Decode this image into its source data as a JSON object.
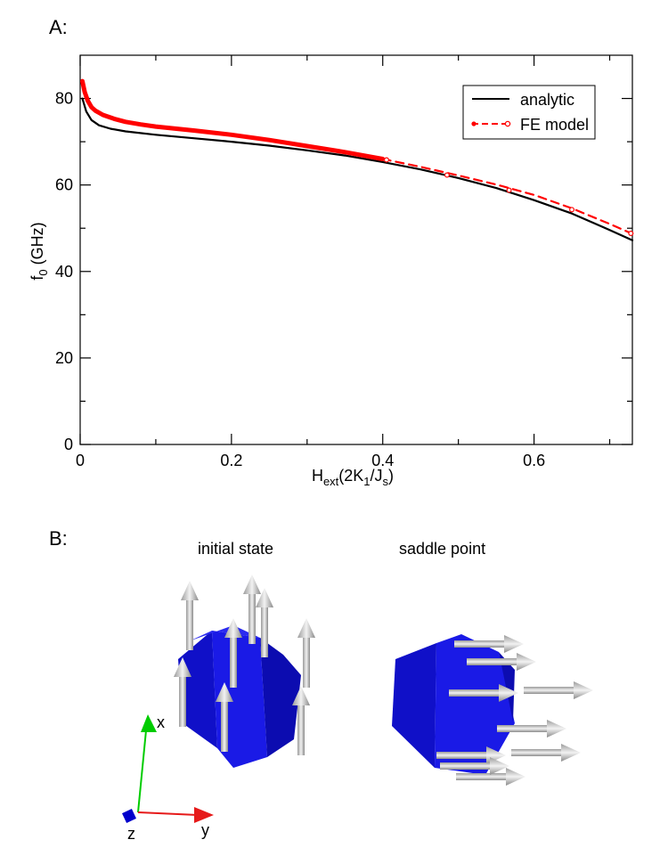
{
  "panels": {
    "a_label": "A:",
    "b_label": "B:",
    "b_titles": {
      "initial": "initial state",
      "saddle": "saddle point"
    }
  },
  "chart_data": {
    "type": "line",
    "xlabel": {
      "main": "H",
      "sub1": "ext",
      "mid": "(2K",
      "sub2": "1",
      "slash": "/J",
      "sub3": "s",
      "close": ")"
    },
    "ylabel": {
      "main": "f",
      "sub": "0",
      "rest": " (GHz)"
    },
    "xlim": [
      0,
      0.73
    ],
    "ylim": [
      0,
      90
    ],
    "xticks": [
      0,
      0.2,
      0.4,
      0.6
    ],
    "xtick_labels": [
      "0",
      "0.2",
      "0.4",
      "0.6"
    ],
    "yticks": [
      0,
      20,
      40,
      60,
      80
    ],
    "ytick_labels": [
      "0",
      "20",
      "40",
      "60",
      "80"
    ],
    "grid": false,
    "legend_position": "top-right",
    "series": [
      {
        "name": "analytic",
        "color": "#000000",
        "style": "solid",
        "x": [
          0.003,
          0.008,
          0.015,
          0.025,
          0.04,
          0.06,
          0.1,
          0.15,
          0.2,
          0.25,
          0.3,
          0.35,
          0.4,
          0.45,
          0.5,
          0.55,
          0.6,
          0.65,
          0.7,
          0.73
        ],
        "y": [
          80.0,
          77.0,
          75.0,
          73.8,
          73.0,
          72.4,
          71.6,
          70.8,
          70.0,
          69.1,
          68.0,
          66.8,
          65.3,
          63.6,
          61.6,
          59.3,
          56.5,
          53.4,
          49.6,
          47.2
        ]
      },
      {
        "name": "FE model",
        "color": "#ff0000",
        "style": "solid",
        "x": [
          0.003,
          0.006,
          0.01,
          0.015,
          0.02,
          0.03,
          0.045,
          0.06,
          0.08,
          0.1,
          0.15,
          0.2,
          0.25,
          0.3,
          0.35,
          0.4
        ],
        "y": [
          84.0,
          81.5,
          79.5,
          78.0,
          77.2,
          76.2,
          75.3,
          74.6,
          74.0,
          73.5,
          72.6,
          71.6,
          70.4,
          69.0,
          67.6,
          66.0
        ]
      },
      {
        "name": "FE model (dashed)",
        "color": "#ff0000",
        "style": "dashed",
        "x": [
          0.4,
          0.45,
          0.5,
          0.55,
          0.6,
          0.65,
          0.7,
          0.73
        ],
        "y": [
          66.0,
          64.2,
          62.2,
          60.1,
          57.7,
          54.6,
          51.0,
          48.7
        ]
      }
    ],
    "markers": {
      "x": [
        0.405,
        0.485,
        0.567,
        0.65,
        0.728
      ],
      "y": [
        65.8,
        62.3,
        58.8,
        54.3,
        48.8
      ]
    },
    "legend": [
      {
        "label": "analytic",
        "color": "#000000",
        "style": "solid"
      },
      {
        "label": "FE model",
        "color": "#ff0000",
        "style": "dashed"
      }
    ]
  },
  "axes3d": {
    "x": "x",
    "y": "y",
    "z": "z"
  },
  "colors": {
    "cube": "#1414e6",
    "arrow": "#c0c0c0",
    "x_axis": "#00cc00",
    "y_axis": "#e61a1a",
    "z_axis": "#0000cc"
  }
}
